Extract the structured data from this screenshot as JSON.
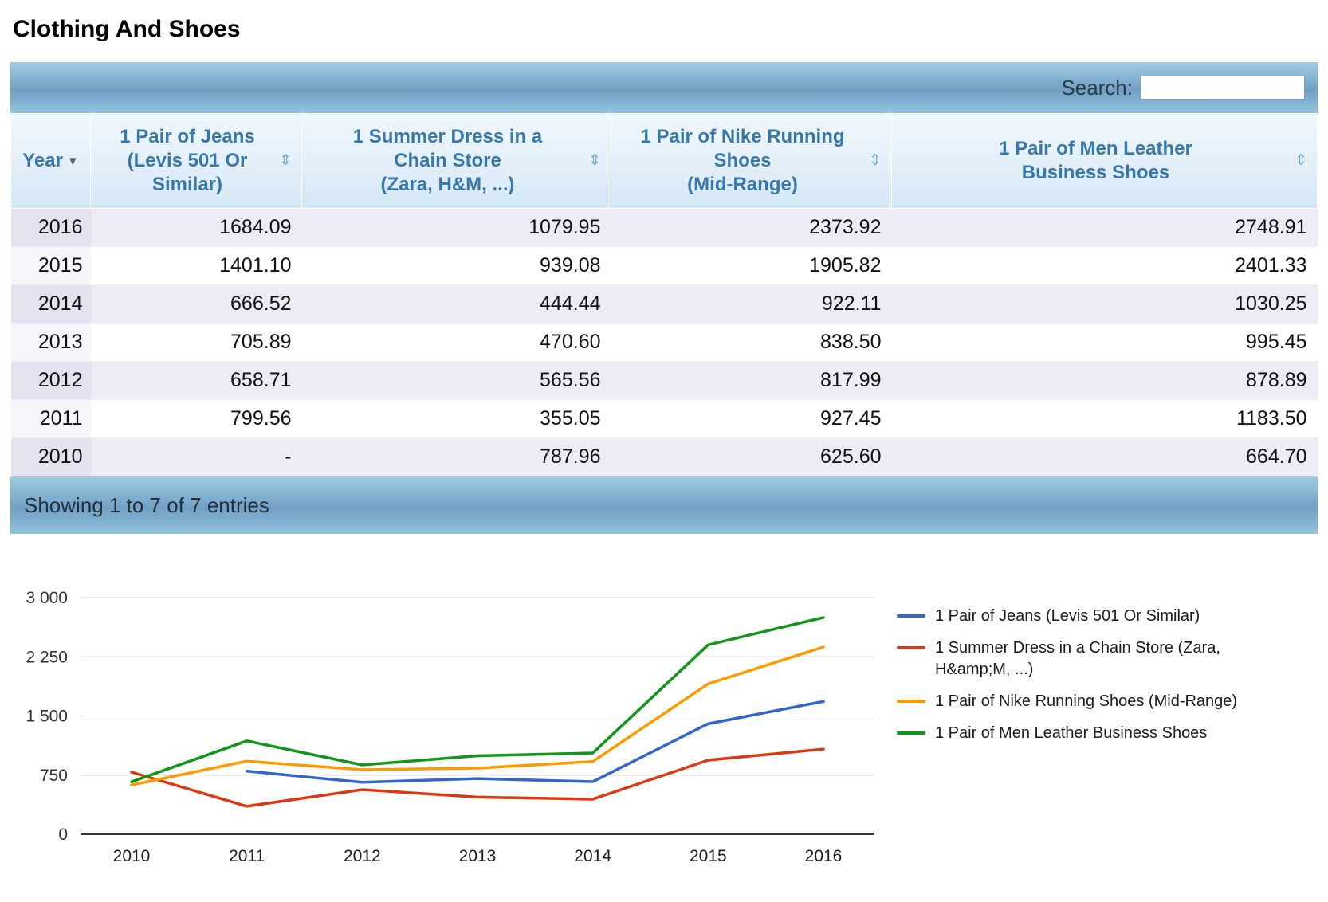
{
  "page": {
    "title": "Clothing And Shoes"
  },
  "table": {
    "search_label": "Search:",
    "search_value": "",
    "columns": [
      {
        "label": "Year",
        "sorted": "desc"
      },
      {
        "label": "1 Pair of Jeans\n(Levis 501 Or\nSimilar)",
        "sorted": "none"
      },
      {
        "label": "1 Summer Dress in a\nChain Store\n(Zara, H&M, ...)",
        "sorted": "none"
      },
      {
        "label": "1 Pair of Nike Running\nShoes\n(Mid-Range)",
        "sorted": "none"
      },
      {
        "label": "1 Pair of Men Leather\nBusiness Shoes",
        "sorted": "none"
      }
    ],
    "rows": [
      [
        "2016",
        "1684.09",
        "1079.95",
        "2373.92",
        "2748.91"
      ],
      [
        "2015",
        "1401.10",
        "939.08",
        "1905.82",
        "2401.33"
      ],
      [
        "2014",
        "666.52",
        "444.44",
        "922.11",
        "1030.25"
      ],
      [
        "2013",
        "705.89",
        "470.60",
        "838.50",
        "995.45"
      ],
      [
        "2012",
        "658.71",
        "565.56",
        "817.99",
        "878.89"
      ],
      [
        "2011",
        "799.56",
        "355.05",
        "927.45",
        "1183.50"
      ],
      [
        "2010",
        "-",
        "787.96",
        "625.60",
        "664.70"
      ]
    ],
    "footer_status": "Showing 1 to 7 of 7 entries",
    "sort_icon_unsorted": "⇕",
    "sort_icon_desc": "▼"
  },
  "chart_data": {
    "type": "line",
    "x": [
      2010,
      2011,
      2012,
      2013,
      2014,
      2015,
      2016
    ],
    "series": [
      {
        "name": "1 Pair of Jeans (Levis 501 Or Similar)",
        "color": "#3366cc",
        "values": [
          null,
          799.56,
          658.71,
          705.89,
          666.52,
          1401.1,
          1684.09
        ]
      },
      {
        "name": "1 Summer Dress in a Chain Store (Zara, H&amp;M, ...)",
        "color": "#dc3912",
        "values": [
          787.96,
          355.05,
          565.56,
          470.6,
          444.44,
          939.08,
          1079.95
        ]
      },
      {
        "name": "1 Pair of Nike Running Shoes (Mid-Range)",
        "color": "#ff9900",
        "values": [
          625.6,
          927.45,
          817.99,
          838.5,
          922.11,
          1905.82,
          2373.92
        ]
      },
      {
        "name": "1 Pair of Men Leather Business Shoes",
        "color": "#109618",
        "values": [
          664.7,
          1183.5,
          878.89,
          995.45,
          1030.25,
          2401.33,
          2748.91
        ]
      }
    ],
    "title": "",
    "xlabel": "",
    "ylabel": "",
    "ylim": [
      0,
      3000
    ],
    "yticks": [
      {
        "value": 0,
        "label": "0"
      },
      {
        "value": 750,
        "label": "750"
      },
      {
        "value": 1500,
        "label": "1 500"
      },
      {
        "value": 2250,
        "label": "2 250"
      },
      {
        "value": 3000,
        "label": "3 000"
      }
    ],
    "grid": true,
    "legend_position": "right"
  }
}
